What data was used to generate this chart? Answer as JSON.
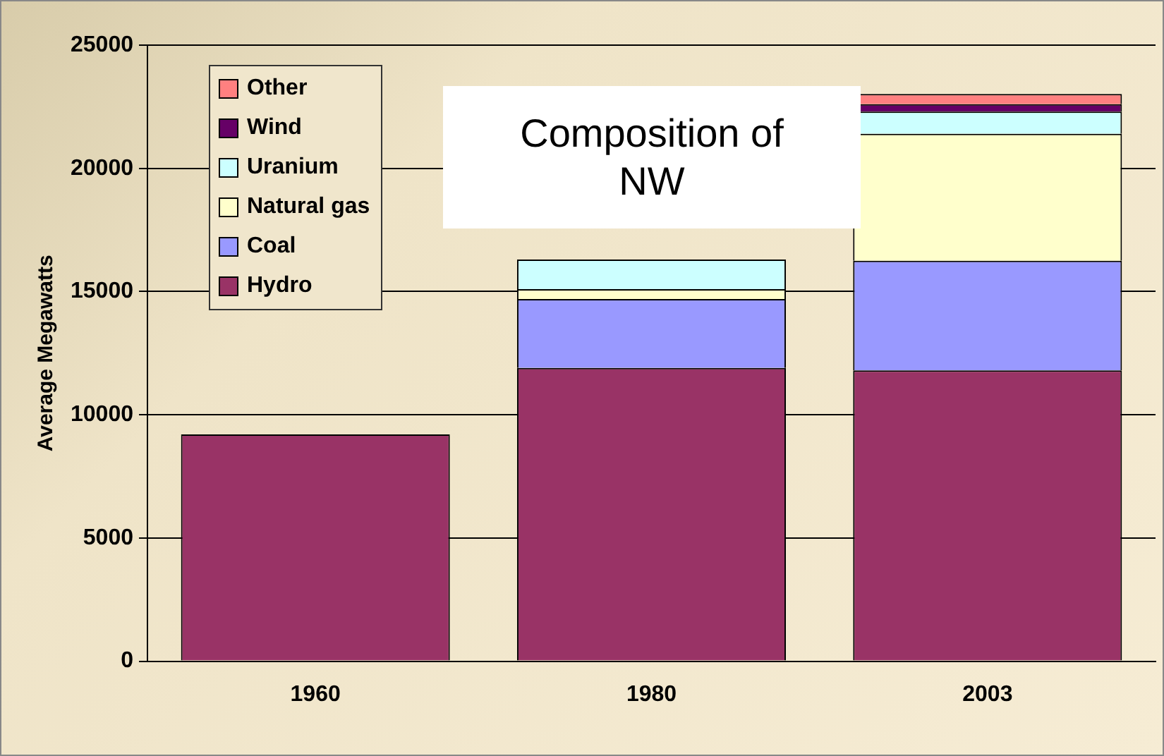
{
  "chart_data": {
    "type": "bar",
    "title": "Composition of NW",
    "ylabel": "Average Megawatts",
    "categories": [
      "1960",
      "1980",
      "2003"
    ],
    "stacked": true,
    "ylim": [
      0,
      25000
    ],
    "yticks": [
      0,
      5000,
      10000,
      15000,
      20000,
      25000
    ],
    "grid": "y",
    "legend": "top left",
    "series": [
      {
        "name": "Hydro",
        "color": "#993366",
        "values": [
          9200,
          11900,
          11800
        ]
      },
      {
        "name": "Coal",
        "color": "#9999ff",
        "values": [
          0,
          2800,
          4450
        ]
      },
      {
        "name": "Natural gas",
        "color": "#ffffcc",
        "values": [
          0,
          400,
          5150
        ]
      },
      {
        "name": "Uranium",
        "color": "#ccffff",
        "values": [
          0,
          1200,
          900
        ]
      },
      {
        "name": "Wind",
        "color": "#660066",
        "values": [
          0,
          null,
          300
        ]
      },
      {
        "name": "Other",
        "color": "#ff8080",
        "values": [
          0,
          0,
          420
        ]
      }
    ]
  }
}
